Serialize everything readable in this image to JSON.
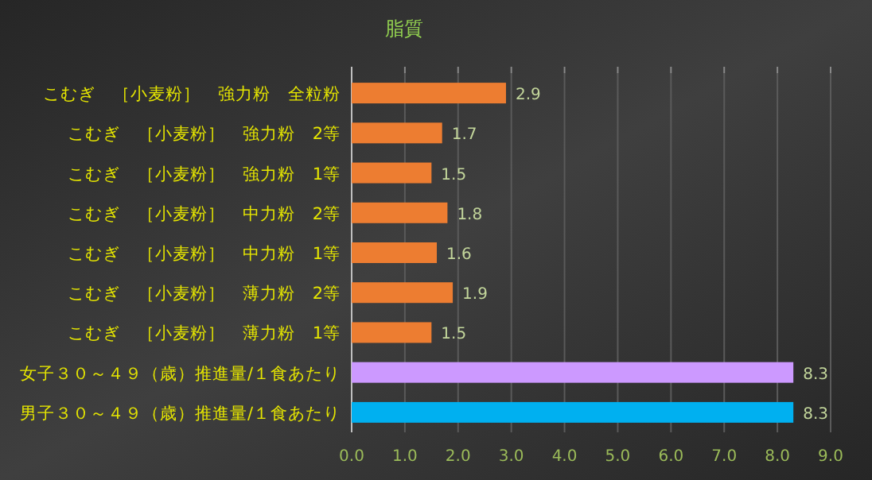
{
  "chart_data": {
    "type": "bar",
    "orientation": "horizontal",
    "title": "脂質",
    "categories": [
      "こむぎ　［小麦粉］　強力粉　全粒粉",
      "こむぎ　［小麦粉］　強力粉　2等",
      "こむぎ　［小麦粉］　強力粉　1等",
      "こむぎ　［小麦粉］　中力粉　2等",
      "こむぎ　［小麦粉］　中力粉　1等",
      "こむぎ　［小麦粉］　薄力粉　2等",
      "こむぎ　［小麦粉］　薄力粉　1等",
      "女子３０～４９（歳）推進量/１食あたり",
      "男子３０～４９（歳）推進量/１食あたり"
    ],
    "values": [
      2.9,
      1.7,
      1.5,
      1.8,
      1.6,
      1.9,
      1.5,
      8.3,
      8.3
    ],
    "colors": [
      "#ed7d31",
      "#ed7d31",
      "#ed7d31",
      "#ed7d31",
      "#ed7d31",
      "#ed7d31",
      "#ed7d31",
      "#cc99ff",
      "#00b0f0"
    ],
    "xlim": [
      0,
      9
    ],
    "xticks": [
      {
        "value": 0,
        "label": "0.0"
      },
      {
        "value": 1,
        "label": "1.0"
      },
      {
        "value": 2,
        "label": "2.0"
      },
      {
        "value": 3,
        "label": "3.0"
      },
      {
        "value": 4,
        "label": "4.0"
      },
      {
        "value": 5,
        "label": "5.0"
      },
      {
        "value": 6,
        "label": "6.0"
      },
      {
        "value": 7,
        "label": "7.0"
      },
      {
        "value": 8,
        "label": "8.0"
      },
      {
        "value": 9,
        "label": "9.0"
      }
    ],
    "grid": "x",
    "data_labels": true
  }
}
